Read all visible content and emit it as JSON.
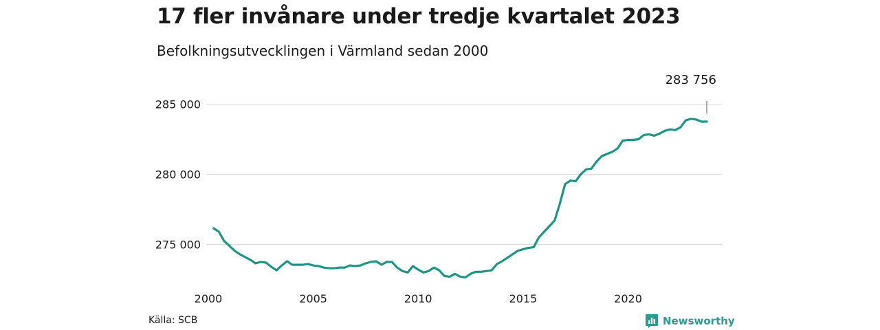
{
  "header": {
    "title": "17 fler invånare under tredje kvartalet 2023",
    "subtitle": "Befolkningsutvecklingen i Värmland sedan 2000"
  },
  "footer": {
    "source": "Källa: SCB",
    "brand": "Newsworthy",
    "brand_icon": "newsworthy-logo-icon"
  },
  "colors": {
    "line": "#1a9682",
    "grid": "#d9d9d9",
    "brand": "#2a9d8f"
  },
  "chart_data": {
    "type": "line",
    "title": "17 fler invånare under tredje kvartalet 2023",
    "subtitle": "Befolkningsutvecklingen i Värmland sedan 2000",
    "xlabel": "",
    "ylabel": "",
    "xlim": [
      2000,
      2023.75
    ],
    "ylim": [
      272000,
      285500
    ],
    "x_ticks": [
      {
        "value": 2000,
        "label": "2000"
      },
      {
        "value": 2005,
        "label": "2005"
      },
      {
        "value": 2010,
        "label": "2010"
      },
      {
        "value": 2015,
        "label": "2015"
      },
      {
        "value": 2020,
        "label": "2020"
      }
    ],
    "y_ticks": [
      {
        "value": 275000,
        "label": "275 000"
      },
      {
        "value": 280000,
        "label": "280 000"
      },
      {
        "value": 285000,
        "label": "285 000"
      }
    ],
    "grid": true,
    "legend": "none",
    "annotation": {
      "x": 2023.75,
      "y": 283756,
      "label": "283 756"
    },
    "series": [
      {
        "x": [
          2000.25,
          2000.5,
          2000.75,
          2001,
          2001.25,
          2001.5,
          2001.75,
          2002,
          2002.25,
          2002.5,
          2002.75,
          2003,
          2003.25,
          2003.5,
          2003.75,
          2004,
          2004.25,
          2004.5,
          2004.75,
          2005,
          2005.25,
          2005.5,
          2005.75,
          2006,
          2006.25,
          2006.5,
          2006.75,
          2007,
          2007.25,
          2007.5,
          2007.75,
          2008,
          2008.25,
          2008.5,
          2008.75,
          2009,
          2009.25,
          2009.5,
          2009.75,
          2010,
          2010.25,
          2010.5,
          2010.75,
          2011,
          2011.25,
          2011.5,
          2011.75,
          2012,
          2012.25,
          2012.5,
          2012.75,
          2013,
          2013.25,
          2013.5,
          2013.75,
          2014,
          2014.25,
          2014.5,
          2014.75,
          2015,
          2015.25,
          2015.5,
          2015.75,
          2016,
          2016.25,
          2016.5,
          2016.75,
          2017,
          2017.25,
          2017.5,
          2017.75,
          2018,
          2018.25,
          2018.5,
          2018.75,
          2019,
          2019.25,
          2019.5,
          2019.75,
          2020,
          2020.25,
          2020.5,
          2020.75,
          2021,
          2021.25,
          2021.5,
          2021.75,
          2022,
          2022.25,
          2022.5,
          2022.75,
          2023,
          2023.25,
          2023.5,
          2023.75
        ],
        "values": [
          276150,
          275900,
          275250,
          274900,
          274550,
          274300,
          274100,
          273900,
          273650,
          273750,
          273700,
          273400,
          273150,
          273500,
          273800,
          273550,
          273550,
          273550,
          273600,
          273500,
          273450,
          273350,
          273300,
          273300,
          273350,
          273350,
          273500,
          273450,
          273500,
          273650,
          273750,
          273800,
          273550,
          273750,
          273750,
          273350,
          273100,
          273000,
          273450,
          273200,
          273000,
          273100,
          273350,
          273150,
          272750,
          272700,
          272900,
          272700,
          272650,
          272900,
          273050,
          273050,
          273100,
          273150,
          273600,
          273800,
          274050,
          274300,
          274550,
          274650,
          274750,
          274800,
          275500,
          275900,
          276300,
          276700,
          277900,
          279300,
          279550,
          279500,
          280000,
          280350,
          280400,
          280900,
          281300,
          281450,
          281600,
          281850,
          282400,
          282450,
          282450,
          282500,
          282800,
          282850,
          282750,
          282900,
          283100,
          283200,
          283150,
          283350,
          283850,
          283950,
          283900,
          283750,
          283756
        ]
      }
    ]
  }
}
